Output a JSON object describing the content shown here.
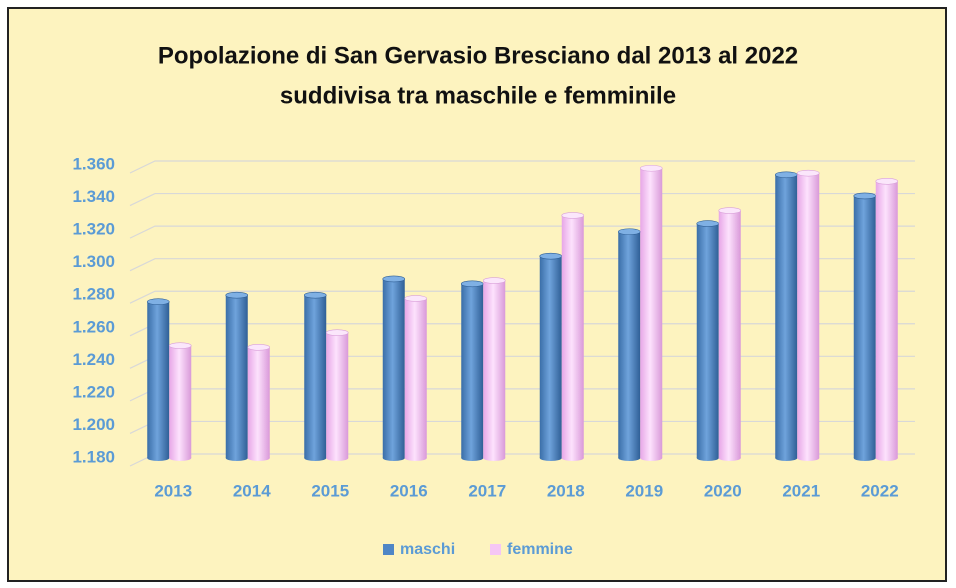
{
  "chart_data": {
    "type": "bar",
    "title": "Popolazione di San Gervasio Bresciano dal 2013 al 2022",
    "subtitle": "suddivisa tra maschile e femminile",
    "categories": [
      "2013",
      "2014",
      "2015",
      "2016",
      "2017",
      "2018",
      "2019",
      "2020",
      "2021",
      "2022"
    ],
    "series": [
      {
        "name": "maschi",
        "color": "#4f86c6",
        "values": [
          1276,
          1280,
          1280,
          1290,
          1287,
          1304,
          1319,
          1324,
          1354,
          1341
        ]
      },
      {
        "name": "femmine",
        "color": "#f5c6f5",
        "values": [
          1249,
          1248,
          1257,
          1278,
          1289,
          1329,
          1358,
          1332,
          1355,
          1350
        ]
      }
    ],
    "ylim": [
      1180,
      1360
    ],
    "yticks": [
      {
        "value": 1180,
        "label": "1.180"
      },
      {
        "value": 1200,
        "label": "1.200"
      },
      {
        "value": 1220,
        "label": "1.220"
      },
      {
        "value": 1240,
        "label": "1.240"
      },
      {
        "value": 1260,
        "label": "1.260"
      },
      {
        "value": 1280,
        "label": "1.280"
      },
      {
        "value": 1300,
        "label": "1.300"
      },
      {
        "value": 1320,
        "label": "1.320"
      },
      {
        "value": 1340,
        "label": "1.340"
      },
      {
        "value": 1360,
        "label": "1.360"
      }
    ],
    "grid": true,
    "legend": "bottom"
  }
}
